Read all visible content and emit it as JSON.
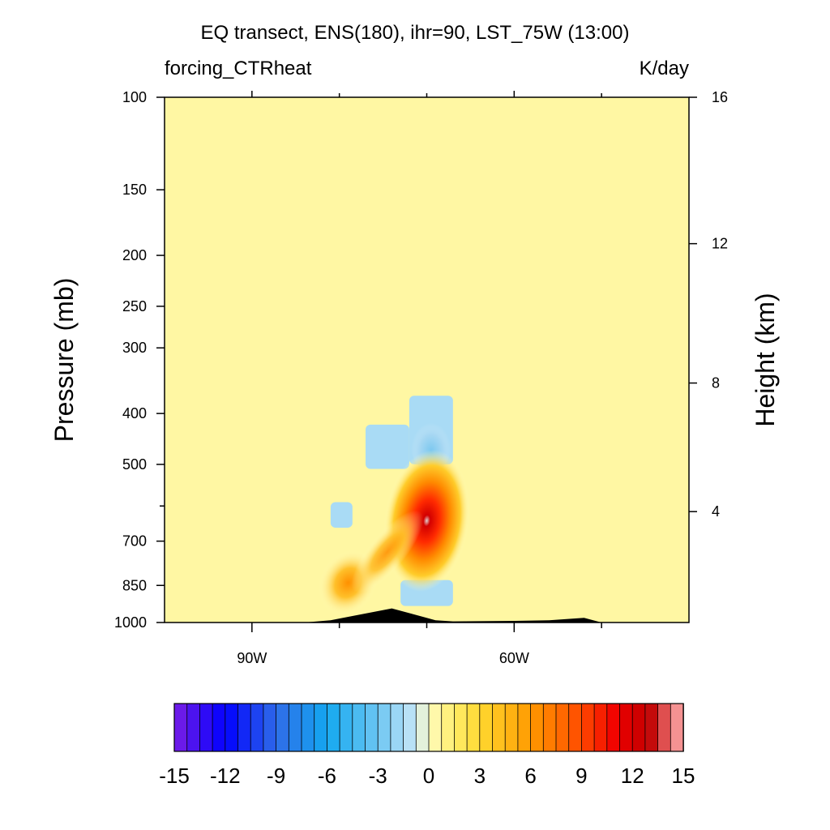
{
  "chart_data": {
    "type": "heatmap",
    "title": "EQ transect, ENS(180), ihr=90, LST_75W (13:00)",
    "left_subtitle": "forcing_CTRheat",
    "right_subtitle": "K/day",
    "ylabel": "Pressure (mb)",
    "y2label": "Height (km)",
    "x_ticks": [
      {
        "value": -90,
        "label": "90W"
      },
      {
        "value": -60,
        "label": "60W"
      }
    ],
    "x_minor_ticks": [
      -80,
      -70,
      -50
    ],
    "xlim": [
      -100,
      -40
    ],
    "ylim": [
      1000,
      100
    ],
    "y_scale": "log",
    "y_ticks": [
      {
        "value": 100,
        "label": "100"
      },
      {
        "value": 150,
        "label": "150"
      },
      {
        "value": 200,
        "label": "200"
      },
      {
        "value": 250,
        "label": "250"
      },
      {
        "value": 300,
        "label": "300"
      },
      {
        "value": 400,
        "label": "400"
      },
      {
        "value": 500,
        "label": "500"
      },
      {
        "value": 700,
        "label": "700"
      },
      {
        "value": 850,
        "label": "850"
      },
      {
        "value": 1000,
        "label": "1000"
      }
    ],
    "y_minor_ticks": [
      600
    ],
    "y2_ticks": [
      {
        "value": 16,
        "label": "16",
        "pressure": 100
      },
      {
        "value": 12,
        "label": "12",
        "pressure": 190
      },
      {
        "value": 8,
        "label": "8",
        "pressure": 350
      },
      {
        "value": 4,
        "label": "4",
        "pressure": 615
      }
    ],
    "background_value": 0.5,
    "features": [
      {
        "name": "cooling-region",
        "lon_range": [
          -72,
          -67
        ],
        "p_range": [
          370,
          500
        ],
        "value": -1.5
      },
      {
        "name": "cooling-side",
        "lon_range": [
          -77,
          -72
        ],
        "p_range": [
          420,
          510
        ],
        "value": -1.5
      },
      {
        "name": "cooling-core",
        "lon_range": [
          -70.5,
          -68.5
        ],
        "p_range": [
          440,
          480
        ],
        "value": -3.5
      },
      {
        "name": "cooling-left",
        "lon_range": [
          -81,
          -78.5
        ],
        "p_range": [
          590,
          660
        ],
        "value": -1.5
      },
      {
        "name": "cooling-low",
        "lon_range": [
          -73,
          -67
        ],
        "p_range": [
          830,
          930
        ],
        "value": -1.5
      },
      {
        "name": "heating-core",
        "center": [
          -70,
          640
        ],
        "max": 14
      },
      {
        "name": "heating-low",
        "center": [
          -79,
          840
        ],
        "max": 7
      }
    ],
    "terrain": [
      [
        -84,
        1000
      ],
      [
        -81,
        990
      ],
      [
        -74,
        940
      ],
      [
        -69,
        990
      ],
      [
        -67,
        995
      ],
      [
        -60,
        993
      ],
      [
        -56,
        990
      ],
      [
        -52,
        980
      ],
      [
        -50,
        1000
      ]
    ],
    "colorbar": {
      "min": -15,
      "max": 15,
      "step": 0.75,
      "tick_values": [
        -15,
        -12,
        -9,
        -6,
        -3,
        0,
        3,
        6,
        9,
        12,
        15
      ],
      "tick_labels": [
        "-15",
        "-12",
        "-9",
        "-6",
        "-3",
        "0",
        "3",
        "6",
        "9",
        "12",
        "15"
      ],
      "stops": [
        {
          "value": -15,
          "color": "#7a1ee6"
        },
        {
          "value": -12,
          "color": "#0000ff"
        },
        {
          "value": -9,
          "color": "#2f6be8"
        },
        {
          "value": -6,
          "color": "#14a8f0"
        },
        {
          "value": -3,
          "color": "#6cc6f2"
        },
        {
          "value": -0.75,
          "color": "#c7e6f7"
        },
        {
          "value": 0,
          "color": "#fffcbf"
        },
        {
          "value": 1.5,
          "color": "#ffed6a"
        },
        {
          "value": 3,
          "color": "#ffd930"
        },
        {
          "value": 6,
          "color": "#ff9a00"
        },
        {
          "value": 9,
          "color": "#ff4a00"
        },
        {
          "value": 11,
          "color": "#f00000"
        },
        {
          "value": 13,
          "color": "#c00000"
        },
        {
          "value": 14,
          "color": "#e35a5a"
        },
        {
          "value": 15,
          "color": "#ffb3b3"
        }
      ]
    }
  }
}
